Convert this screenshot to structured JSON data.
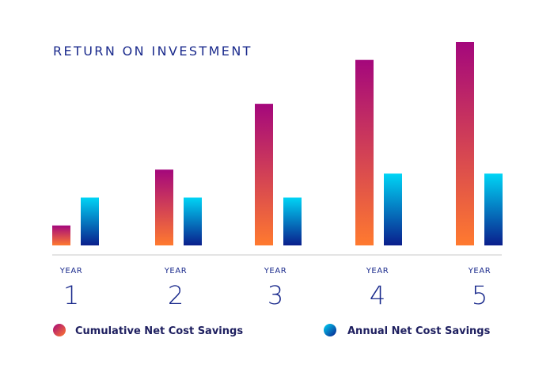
{
  "chart_data": {
    "type": "bar",
    "title": "RETURN ON INVESTMENT",
    "category_prefix": "YEAR",
    "categories": [
      "1",
      "2",
      "3",
      "4",
      "5"
    ],
    "series": [
      {
        "name": "Cumulative Net Cost Savings",
        "values": [
          1,
          3.8,
          7.1,
          9.3,
          10.2
        ],
        "gradient": [
          "#a4077c",
          "#ff7a2f"
        ]
      },
      {
        "name": "Annual Net Cost Savings",
        "values": [
          2.4,
          2.4,
          2.4,
          3.6,
          3.6
        ],
        "gradient": [
          "#00d4f5",
          "#0a1e8c"
        ]
      }
    ],
    "ylim": [
      0,
      10.2
    ],
    "grid": false,
    "legend_position": "bottom"
  }
}
